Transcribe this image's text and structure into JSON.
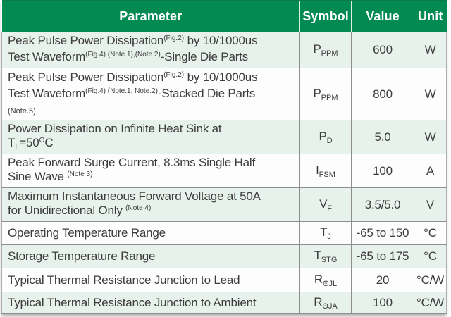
{
  "header": {
    "columns": [
      "Parameter",
      "Symbol",
      "Value",
      "Unit"
    ]
  },
  "rows": [
    {
      "parameter": [
        {
          "t": "Peak Pulse Power Dissipation",
          "s": "n"
        },
        {
          "t": "(Fig.2)",
          "s": "sup"
        },
        {
          "t": " by 10/1000us",
          "s": "n"
        },
        {
          "t": "",
          "s": "br"
        },
        {
          "t": "Test Waveform",
          "s": "n"
        },
        {
          "t": "(Fig.4) (Note 1),(Note 2)",
          "s": "sup"
        },
        {
          "t": "-Single Die Parts",
          "s": "n"
        }
      ],
      "symbol": [
        {
          "t": "P",
          "s": "n"
        },
        {
          "t": "PPM",
          "s": "sub"
        }
      ],
      "value": "600",
      "unit": "W"
    },
    {
      "parameter": [
        {
          "t": "Peak Pulse Power Dissipation",
          "s": "n"
        },
        {
          "t": "(Fig.2)",
          "s": "sup"
        },
        {
          "t": " by 10/1000us",
          "s": "n"
        },
        {
          "t": "",
          "s": "br"
        },
        {
          "t": "Test Waveform",
          "s": "n"
        },
        {
          "t": "(Fig.4) (Note.1, Note.2)",
          "s": "sup"
        },
        {
          "t": "-Stacked Die Parts",
          "s": "n"
        },
        {
          "t": "",
          "s": "br"
        },
        {
          "t": "(Note.5)",
          "s": "note"
        }
      ],
      "symbol": [
        {
          "t": "P",
          "s": "n"
        },
        {
          "t": "PPM",
          "s": "sub"
        }
      ],
      "value": "800",
      "unit": "W"
    },
    {
      "parameter": [
        {
          "t": "Power Dissipation on Infinite Heat Sink at",
          "s": "n"
        },
        {
          "t": "",
          "s": "br"
        },
        {
          "t": "T",
          "s": "n"
        },
        {
          "t": "L",
          "s": "sub"
        },
        {
          "t": "=50",
          "s": "n"
        },
        {
          "t": "O",
          "s": "sup"
        },
        {
          "t": "C",
          "s": "n"
        }
      ],
      "symbol": [
        {
          "t": "P",
          "s": "n"
        },
        {
          "t": "D",
          "s": "sub"
        }
      ],
      "value": "5.0",
      "unit": "W"
    },
    {
      "parameter": [
        {
          "t": "Peak Forward Surge Current, 8.3ms Single Half",
          "s": "n"
        },
        {
          "t": "",
          "s": "br"
        },
        {
          "t": "Sine Wave ",
          "s": "n"
        },
        {
          "t": "(Note 3)",
          "s": "sup"
        }
      ],
      "symbol": [
        {
          "t": "I",
          "s": "n"
        },
        {
          "t": "FSM",
          "s": "sub"
        }
      ],
      "value": "100",
      "unit": "A"
    },
    {
      "parameter": [
        {
          "t": "Maximum Instantaneous Forward Voltage at 50A",
          "s": "n"
        },
        {
          "t": "",
          "s": "br"
        },
        {
          "t": "for Unidirectional Only ",
          "s": "n"
        },
        {
          "t": "(Note 4)",
          "s": "sup"
        }
      ],
      "symbol": [
        {
          "t": "V",
          "s": "n"
        },
        {
          "t": "F",
          "s": "sub"
        }
      ],
      "value": "3.5/5.0",
      "unit": "V"
    },
    {
      "parameter": [
        {
          "t": "Operating Temperature Range",
          "s": "n"
        }
      ],
      "symbol": [
        {
          "t": "T",
          "s": "n"
        },
        {
          "t": "J",
          "s": "sub"
        }
      ],
      "value": "-65 to 150",
      "unit": "°C"
    },
    {
      "parameter": [
        {
          "t": "Storage Temperature Range",
          "s": "n"
        }
      ],
      "symbol": [
        {
          "t": "T",
          "s": "n"
        },
        {
          "t": "STG",
          "s": "sub"
        }
      ],
      "value": "-65 to 175",
      "unit": "°C"
    },
    {
      "parameter": [
        {
          "t": "Typical Thermal Resistance Junction to Lead",
          "s": "n"
        }
      ],
      "symbol": [
        {
          "t": "R",
          "s": "n"
        },
        {
          "t": "ΘJL",
          "s": "sub"
        }
      ],
      "value": "20",
      "unit": "°C/W"
    },
    {
      "parameter": [
        {
          "t": "Typical Thermal Resistance Junction to Ambient",
          "s": "n"
        }
      ],
      "symbol": [
        {
          "t": "R",
          "s": "n"
        },
        {
          "t": "ΘJA",
          "s": "sub"
        }
      ],
      "value": "100",
      "unit": "°C/W"
    }
  ],
  "colors": {
    "header_bg": "#018A51",
    "header_text": "#FFFFFF",
    "row_shaded": "#E8F2EC",
    "row_plain": "#FDFDFD",
    "grid": "#8E8E8E",
    "body_text": "#3C3C3C"
  }
}
